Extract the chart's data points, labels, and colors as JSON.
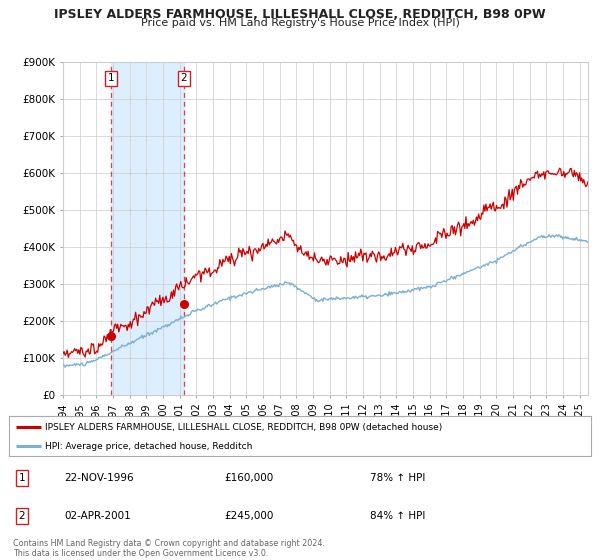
{
  "title": "IPSLEY ALDERS FARMHOUSE, LILLESHALL CLOSE, REDDITCH, B98 0PW",
  "subtitle": "Price paid vs. HM Land Registry's House Price Index (HPI)",
  "ylim": [
    0,
    900000
  ],
  "xlim_start": 1994.0,
  "xlim_end": 2025.5,
  "background_color": "#ffffff",
  "plot_bg_color": "#ffffff",
  "grid_color": "#cccccc",
  "line1_color": "#cc0000",
  "line2_color": "#7ab0d4",
  "transaction1_date": 1996.9,
  "transaction1_value": 160000,
  "transaction2_date": 2001.25,
  "transaction2_value": 245000,
  "shade_color": "#ddeeff",
  "legend1_label": "IPSLEY ALDERS FARMHOUSE, LILLESHALL CLOSE, REDDITCH, B98 0PW (detached house)",
  "legend2_label": "HPI: Average price, detached house, Redditch",
  "annotation1_date": "22-NOV-1996",
  "annotation1_price": "£160,000",
  "annotation1_hpi": "78% ↑ HPI",
  "annotation2_date": "02-APR-2001",
  "annotation2_price": "£245,000",
  "annotation2_hpi": "84% ↑ HPI",
  "footer1": "Contains HM Land Registry data © Crown copyright and database right 2024.",
  "footer2": "This data is licensed under the Open Government Licence v3.0.",
  "ytick_labels": [
    "£0",
    "£100K",
    "£200K",
    "£300K",
    "£400K",
    "£500K",
    "£600K",
    "£700K",
    "£800K",
    "£900K"
  ],
  "ytick_values": [
    0,
    100000,
    200000,
    300000,
    400000,
    500000,
    600000,
    700000,
    800000,
    900000
  ]
}
